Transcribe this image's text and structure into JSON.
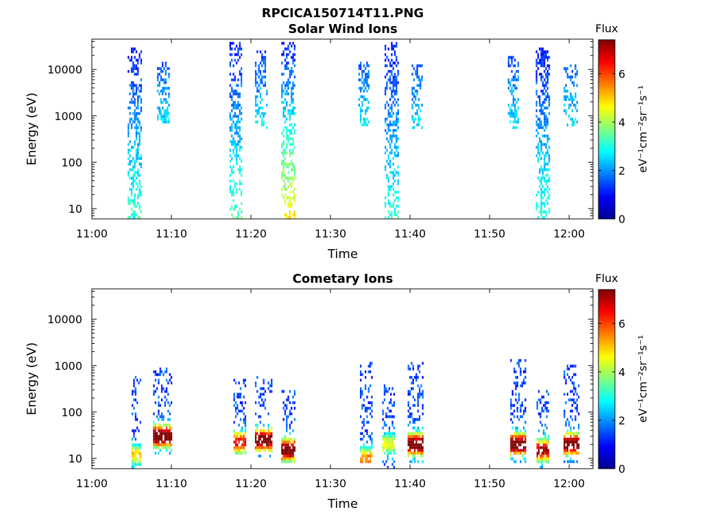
{
  "figure_title": "RPCICA150714T11.PNG",
  "colorbar": {
    "title": "Flux",
    "unit_label": "eV⁻¹cm⁻²sr⁻¹s⁻¹",
    "ticks": [
      "0",
      "2",
      "4",
      "6"
    ],
    "range": [
      0,
      7.4
    ],
    "colormap": "jet"
  },
  "chart_data": [
    {
      "type": "heatmap",
      "title": "Solar Wind Ions",
      "xlabel": "Time",
      "ylabel": "Energy (eV)",
      "xlim_minutes_after_11": [
        0,
        63
      ],
      "ylim": [
        6,
        45000
      ],
      "yscale": "log",
      "xticks": [
        "11:00",
        "11:10",
        "11:20",
        "11:30",
        "11:40",
        "11:50",
        "12:00"
      ],
      "yticks": [
        "10",
        "100",
        "1000",
        "10000"
      ],
      "bursts": [
        {
          "t": 4.5,
          "width": 1.7,
          "e_min": 6,
          "e_max": 30000,
          "low_flux": 3.2,
          "high_flux": 1.0
        },
        {
          "t": 8.2,
          "width": 1.5,
          "e_min": 700,
          "e_max": 15000,
          "low_flux": 2.6,
          "high_flux": 1.4
        },
        {
          "t": 17.3,
          "width": 1.6,
          "e_min": 6,
          "e_max": 40000,
          "low_flux": 3.4,
          "high_flux": 1.0
        },
        {
          "t": 20.5,
          "width": 1.6,
          "e_min": 500,
          "e_max": 25000,
          "low_flux": 2.6,
          "high_flux": 1.3
        },
        {
          "t": 23.8,
          "width": 1.7,
          "e_min": 6,
          "e_max": 40000,
          "low_flux": 4.8,
          "high_flux": 1.0
        },
        {
          "t": 33.5,
          "width": 1.3,
          "e_min": 600,
          "e_max": 15000,
          "low_flux": 2.7,
          "high_flux": 1.5
        },
        {
          "t": 36.8,
          "width": 1.7,
          "e_min": 6,
          "e_max": 40000,
          "low_flux": 3.1,
          "high_flux": 1.0
        },
        {
          "t": 40.2,
          "width": 1.4,
          "e_min": 500,
          "e_max": 12000,
          "low_flux": 2.6,
          "high_flux": 1.6
        },
        {
          "t": 52.3,
          "width": 1.3,
          "e_min": 500,
          "e_max": 20000,
          "low_flux": 2.6,
          "high_flux": 1.5
        },
        {
          "t": 55.8,
          "width": 1.7,
          "e_min": 6,
          "e_max": 30000,
          "low_flux": 3.1,
          "high_flux": 1.0
        },
        {
          "t": 59.3,
          "width": 1.8,
          "e_min": 600,
          "e_max": 12000,
          "low_flux": 2.6,
          "high_flux": 1.6
        }
      ]
    },
    {
      "type": "heatmap",
      "title": "Cometary Ions",
      "xlabel": "Time",
      "ylabel": "Energy (eV)",
      "xlim_minutes_after_11": [
        0,
        63
      ],
      "ylim": [
        6,
        45000
      ],
      "yscale": "log",
      "xticks": [
        "11:00",
        "11:10",
        "11:20",
        "11:30",
        "11:40",
        "11:50",
        "12:00"
      ],
      "yticks": [
        "10",
        "100",
        "1000",
        "10000"
      ],
      "bursts": [
        {
          "t": 5.0,
          "width": 1.2,
          "e_min": 6,
          "e_max": 600,
          "peak_energy": 12,
          "peak_flux": 3.5
        },
        {
          "t": 7.7,
          "width": 2.4,
          "e_min": 12,
          "e_max": 900,
          "peak_energy": 30,
          "peak_flux": 7.0
        },
        {
          "t": 17.8,
          "width": 1.6,
          "e_min": 12,
          "e_max": 500,
          "peak_energy": 22,
          "peak_flux": 5.4
        },
        {
          "t": 20.5,
          "width": 2.1,
          "e_min": 10,
          "e_max": 600,
          "peak_energy": 25,
          "peak_flux": 6.8
        },
        {
          "t": 23.8,
          "width": 1.8,
          "e_min": 8,
          "e_max": 300,
          "peak_energy": 15,
          "peak_flux": 6.8
        },
        {
          "t": 33.7,
          "width": 1.5,
          "e_min": 8,
          "e_max": 1200,
          "peak_energy": 10,
          "peak_flux": 4.2
        },
        {
          "t": 36.5,
          "width": 1.6,
          "e_min": 6,
          "e_max": 400,
          "peak_energy": 20,
          "peak_flux": 3.2
        },
        {
          "t": 39.7,
          "width": 2.0,
          "e_min": 8,
          "e_max": 1200,
          "peak_energy": 20,
          "peak_flux": 7.0
        },
        {
          "t": 52.6,
          "width": 2.0,
          "e_min": 8,
          "e_max": 1400,
          "peak_energy": 20,
          "peak_flux": 7.0
        },
        {
          "t": 55.9,
          "width": 1.5,
          "e_min": 6,
          "e_max": 300,
          "peak_energy": 15,
          "peak_flux": 5.8
        },
        {
          "t": 59.3,
          "width": 2.0,
          "e_min": 8,
          "e_max": 1100,
          "peak_energy": 20,
          "peak_flux": 6.8
        }
      ]
    }
  ]
}
